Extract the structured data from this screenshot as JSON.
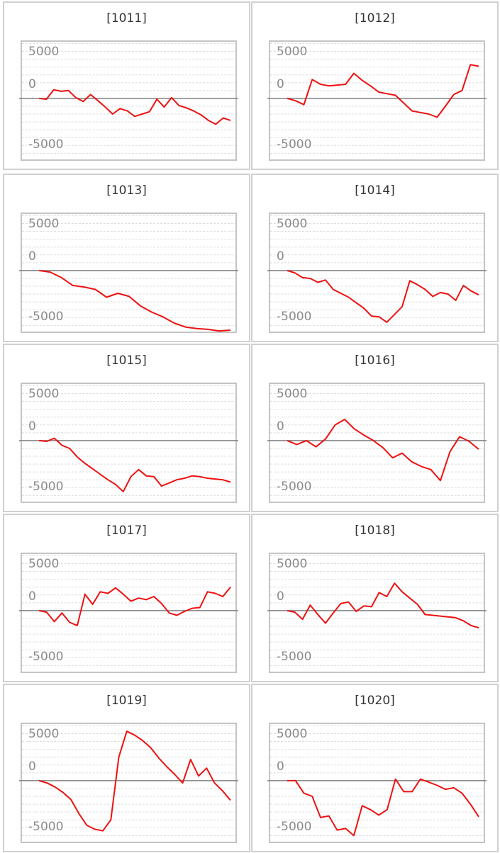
{
  "colors": {
    "line": "#ee1111",
    "zero": "#808080",
    "grid": "#dddddd",
    "panel_border": "#d0d0d0",
    "plot_border": "#c4c4c4"
  },
  "chart_data": [
    {
      "type": "line",
      "title": "[1011]",
      "y_ticks": [
        "5000",
        "0",
        "-5000"
      ],
      "ylim": [
        -7600,
        7400
      ],
      "grid": true,
      "series": [
        {
          "values": [
            0,
            -100,
            1100,
            900,
            1000,
            100,
            -400,
            500,
            -300,
            -1100,
            -2000,
            -1300,
            -1600,
            -2300,
            -2000,
            -1700,
            -100,
            -1100,
            100,
            -900,
            -1200,
            -1600,
            -2100,
            -2800,
            -3300,
            -2500,
            -2800
          ]
        }
      ]
    },
    {
      "type": "line",
      "title": "[1012]",
      "y_ticks": [
        "5000",
        "0",
        "-5000"
      ],
      "ylim": [
        -7600,
        7400
      ],
      "grid": true,
      "series": [
        {
          "values": [
            0,
            -300,
            -800,
            2400,
            1800,
            1600,
            1700,
            1800,
            3200,
            2300,
            1600,
            800,
            600,
            400,
            -600,
            -1600,
            -1800,
            -2000,
            -2400,
            -1000,
            500,
            1000,
            4300,
            4100
          ]
        }
      ]
    },
    {
      "type": "line",
      "title": "[1013]",
      "y_ticks": [
        "5000",
        "0",
        "-5000"
      ],
      "ylim": [
        -7600,
        7400
      ],
      "grid": true,
      "series": [
        {
          "values": [
            0,
            -200,
            -900,
            -1900,
            -2100,
            -2400,
            -3400,
            -2900,
            -3300,
            -4500,
            -5300,
            -5900,
            -6700,
            -7200,
            -7400,
            -7500,
            -7700,
            -7600
          ]
        }
      ]
    },
    {
      "type": "line",
      "title": "[1014]",
      "y_ticks": [
        "5000",
        "0",
        "-5000"
      ],
      "ylim": [
        -7600,
        7400
      ],
      "grid": true,
      "series": [
        {
          "values": [
            0,
            -300,
            -900,
            -1000,
            -1500,
            -1200,
            -2400,
            -2900,
            -3400,
            -4100,
            -4800,
            -5800,
            -5900,
            -6600,
            -5600,
            -4600,
            -1300,
            -1800,
            -2400,
            -3300,
            -2800,
            -3000,
            -3800,
            -1900,
            -2600,
            -3100
          ]
        }
      ]
    },
    {
      "type": "line",
      "title": "[1015]",
      "y_ticks": [
        "5000",
        "0",
        "-5000"
      ],
      "ylim": [
        -7600,
        7400
      ],
      "grid": true,
      "series": [
        {
          "values": [
            0,
            -100,
            300,
            -600,
            -1000,
            -2100,
            -2900,
            -3600,
            -4300,
            -5000,
            -5600,
            -6500,
            -4600,
            -3700,
            -4500,
            -4600,
            -5800,
            -5400,
            -5000,
            -4800,
            -4500,
            -4600,
            -4800,
            -4900,
            -5000,
            -5300
          ]
        }
      ]
    },
    {
      "type": "line",
      "title": "[1016]",
      "y_ticks": [
        "5000",
        "0",
        "-5000"
      ],
      "ylim": [
        -7600,
        7400
      ],
      "grid": true,
      "series": [
        {
          "values": [
            0,
            -500,
            0,
            -800,
            200,
            2000,
            2700,
            1500,
            700,
            0,
            -900,
            -2200,
            -1600,
            -2700,
            -3300,
            -3700,
            -5100,
            -1400,
            500,
            -100,
            -1100
          ]
        }
      ]
    },
    {
      "type": "line",
      "title": "[1017]",
      "y_ticks": [
        "5000",
        "0",
        "-5000"
      ],
      "ylim": [
        -7600,
        7400
      ],
      "grid": true,
      "series": [
        {
          "values": [
            0,
            -200,
            -1400,
            -300,
            -1500,
            -1900,
            2100,
            800,
            2400,
            2200,
            2900,
            2100,
            1200,
            1600,
            1400,
            1800,
            900,
            -300,
            -600,
            -100,
            300,
            400,
            2400,
            2200,
            1800,
            3000
          ]
        }
      ]
    },
    {
      "type": "line",
      "title": "[1018]",
      "y_ticks": [
        "5000",
        "0",
        "-5000"
      ],
      "ylim": [
        -7600,
        7400
      ],
      "grid": true,
      "series": [
        {
          "values": [
            0,
            -200,
            -1100,
            700,
            -500,
            -1600,
            -300,
            900,
            1100,
            -100,
            600,
            500,
            2300,
            1800,
            3500,
            2400,
            1600,
            800,
            -500,
            -600,
            -700,
            -800,
            -900,
            -1300,
            -1900,
            -2200
          ]
        }
      ]
    },
    {
      "type": "line",
      "title": "[1019]",
      "y_ticks": [
        "5000",
        "0",
        "-5000"
      ],
      "ylim": [
        -7600,
        7400
      ],
      "grid": true,
      "series": [
        {
          "values": [
            0,
            -300,
            -800,
            -1500,
            -2400,
            -4200,
            -5700,
            -6200,
            -6400,
            -5000,
            3000,
            6300,
            5800,
            5100,
            4200,
            2900,
            1800,
            800,
            -300,
            2700,
            600,
            1600,
            -300,
            -1300,
            -2500
          ]
        }
      ]
    },
    {
      "type": "line",
      "title": "[1020]",
      "y_ticks": [
        "5000",
        "0",
        "-5000"
      ],
      "ylim": [
        -7600,
        7400
      ],
      "grid": true,
      "series": [
        {
          "values": [
            0,
            0,
            -1600,
            -2000,
            -4700,
            -4500,
            -6300,
            -6100,
            -7000,
            -3200,
            -3700,
            -4400,
            -3700,
            200,
            -1400,
            -1400,
            200,
            -200,
            -600,
            -1100,
            -900,
            -1600,
            -3000,
            -4600
          ]
        }
      ]
    }
  ]
}
